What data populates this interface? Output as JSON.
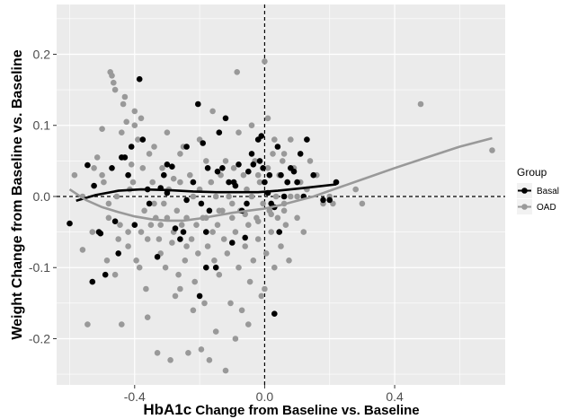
{
  "chart_data": {
    "type": "scatter",
    "xlabel_bold": "HbA1c",
    "xlabel_rest": " Change from Baseline vs. Baseline",
    "ylabel": "Weight Change from Baseline vs. Baseline",
    "xlim": [
      -0.64,
      0.74
    ],
    "ylim": [
      -0.265,
      0.27
    ],
    "x_ticks": [
      -0.4,
      0.0,
      0.4
    ],
    "x_tick_labels": [
      "-0.4",
      "0.0",
      "0.4"
    ],
    "y_ticks": [
      -0.2,
      -0.1,
      0.0,
      0.1,
      0.2
    ],
    "y_tick_labels": [
      "-0.2",
      "-0.1",
      "0.0",
      "0.1",
      "0.2"
    ],
    "reference_lines": {
      "x": 0.0,
      "y": 0.0,
      "style": "dashed"
    },
    "grid": true,
    "legend": {
      "title": "Group",
      "position": "right"
    },
    "series": [
      {
        "name": "Basal",
        "color": "#000000",
        "points": [
          [
            -0.6,
            -0.038
          ],
          [
            -0.545,
            0.044
          ],
          [
            -0.525,
            0.015
          ],
          [
            -0.51,
            -0.05
          ],
          [
            -0.505,
            -0.052
          ],
          [
            -0.49,
            -0.11
          ],
          [
            -0.47,
            0.04
          ],
          [
            -0.46,
            -0.035
          ],
          [
            -0.44,
            0.055
          ],
          [
            -0.43,
            0.055
          ],
          [
            -0.42,
            0.03
          ],
          [
            -0.41,
            0.07
          ],
          [
            -0.4,
            -0.04
          ],
          [
            -0.385,
            0.165
          ],
          [
            -0.375,
            0.08
          ],
          [
            -0.36,
            0.01
          ],
          [
            -0.355,
            -0.01
          ],
          [
            -0.33,
            -0.085
          ],
          [
            -0.32,
            0.012
          ],
          [
            -0.31,
            0.03
          ],
          [
            -0.3,
            0.005
          ],
          [
            -0.285,
            0.042
          ],
          [
            -0.275,
            -0.045
          ],
          [
            -0.26,
            -0.06
          ],
          [
            -0.24,
            -0.005
          ],
          [
            -0.22,
            0.02
          ],
          [
            -0.205,
            0.13
          ],
          [
            -0.195,
            -0.01
          ],
          [
            -0.19,
            0.075
          ],
          [
            -0.18,
            -0.05
          ],
          [
            -0.175,
            0.04
          ],
          [
            -0.17,
            -0.02
          ],
          [
            -0.15,
            -0.1
          ],
          [
            -0.145,
            0.035
          ],
          [
            -0.13,
            0.04
          ],
          [
            -0.12,
            0.11
          ],
          [
            -0.11,
            0.02
          ],
          [
            -0.1,
            -0.065
          ],
          [
            -0.095,
            0.02
          ],
          [
            -0.09,
            0.015
          ],
          [
            -0.08,
            0.045
          ],
          [
            -0.07,
            -0.02
          ],
          [
            -0.06,
            -0.058
          ],
          [
            -0.055,
            -0.01
          ],
          [
            -0.04,
            0.06
          ],
          [
            -0.035,
            0.045
          ],
          [
            -0.02,
            0.08
          ],
          [
            -0.015,
            0.05
          ],
          [
            -0.01,
            0.085
          ],
          [
            0.0,
            0.02
          ],
          [
            0.01,
            0.005
          ],
          [
            0.02,
            -0.01
          ],
          [
            0.03,
            -0.015
          ],
          [
            0.04,
            0.07
          ],
          [
            0.045,
            -0.05
          ],
          [
            0.05,
            0.03
          ],
          [
            0.06,
            0.0
          ],
          [
            0.07,
            0.02
          ],
          [
            0.08,
            0.04
          ],
          [
            0.09,
            0.035
          ],
          [
            0.1,
            0.02
          ],
          [
            0.11,
            0.06
          ],
          [
            0.12,
            0.0
          ],
          [
            0.13,
            0.08
          ],
          [
            0.15,
            0.03
          ],
          [
            0.18,
            -0.005
          ],
          [
            0.2,
            -0.005
          ],
          [
            0.22,
            0.02
          ],
          [
            -0.53,
            -0.12
          ],
          [
            -0.45,
            -0.08
          ],
          [
            -0.25,
            -0.05
          ],
          [
            -0.2,
            -0.14
          ],
          [
            -0.18,
            -0.1
          ],
          [
            0.03,
            -0.165
          ],
          [
            -0.3,
            0.045
          ],
          [
            -0.24,
            0.07
          ],
          [
            -0.05,
            0.035
          ],
          [
            -0.005,
            0.04
          ],
          [
            0.015,
            0.03
          ],
          [
            -0.14,
            0.09
          ]
        ]
      },
      {
        "name": "OAD",
        "color": "#999999",
        "points": [
          [
            -0.585,
            0.03
          ],
          [
            -0.56,
            -0.075
          ],
          [
            -0.545,
            -0.18
          ],
          [
            -0.53,
            -0.05
          ],
          [
            -0.525,
            0.04
          ],
          [
            -0.515,
            0.055
          ],
          [
            -0.5,
            0.095
          ],
          [
            -0.495,
            0.02
          ],
          [
            -0.485,
            -0.09
          ],
          [
            -0.48,
            -0.01
          ],
          [
            -0.475,
            0.175
          ],
          [
            -0.47,
            0.17
          ],
          [
            -0.465,
            0.16
          ],
          [
            -0.46,
            -0.11
          ],
          [
            -0.455,
            0.0
          ],
          [
            -0.45,
            -0.06
          ],
          [
            -0.445,
            -0.04
          ],
          [
            -0.44,
            -0.18
          ],
          [
            -0.435,
            0.13
          ],
          [
            -0.43,
            0.14
          ],
          [
            -0.425,
            0.105
          ],
          [
            -0.42,
            -0.07
          ],
          [
            -0.415,
            0.01
          ],
          [
            -0.41,
            0.045
          ],
          [
            -0.405,
            0.02
          ],
          [
            -0.4,
            0.1
          ],
          [
            -0.395,
            -0.09
          ],
          [
            -0.39,
            0.08
          ],
          [
            -0.385,
            -0.1
          ],
          [
            -0.38,
            -0.05
          ],
          [
            -0.375,
            0.04
          ],
          [
            -0.37,
            -0.02
          ],
          [
            -0.365,
            -0.13
          ],
          [
            -0.36,
            -0.17
          ],
          [
            -0.355,
            0.06
          ],
          [
            -0.35,
            -0.04
          ],
          [
            -0.345,
            0.02
          ],
          [
            -0.34,
            -0.01
          ],
          [
            -0.335,
            -0.03
          ],
          [
            -0.33,
            -0.22
          ],
          [
            -0.325,
            -0.06
          ],
          [
            -0.32,
            -0.08
          ],
          [
            -0.315,
            0.04
          ],
          [
            -0.31,
            -0.01
          ],
          [
            -0.305,
            -0.1
          ],
          [
            -0.3,
            -0.03
          ],
          [
            -0.295,
            0.01
          ],
          [
            -0.29,
            -0.23
          ],
          [
            -0.285,
            -0.065
          ],
          [
            -0.28,
            0.025
          ],
          [
            -0.275,
            -0.14
          ],
          [
            -0.27,
            -0.02
          ],
          [
            -0.265,
            -0.11
          ],
          [
            -0.26,
            0.02
          ],
          [
            -0.255,
            -0.04
          ],
          [
            -0.25,
            0.07
          ],
          [
            -0.245,
            -0.09
          ],
          [
            -0.24,
            -0.03
          ],
          [
            -0.235,
            -0.22
          ],
          [
            -0.23,
            0.03
          ],
          [
            -0.225,
            -0.06
          ],
          [
            -0.22,
            0.0
          ],
          [
            -0.215,
            -0.12
          ],
          [
            -0.21,
            -0.04
          ],
          [
            -0.205,
            -0.08
          ],
          [
            -0.2,
            0.01
          ],
          [
            -0.195,
            -0.215
          ],
          [
            -0.19,
            -0.03
          ],
          [
            -0.185,
            -0.15
          ],
          [
            -0.18,
            0.05
          ],
          [
            -0.175,
            -0.07
          ],
          [
            -0.17,
            -0.23
          ],
          [
            -0.165,
            0.02
          ],
          [
            -0.16,
            -0.05
          ],
          [
            -0.155,
            -0.09
          ],
          [
            -0.15,
            0.0
          ],
          [
            -0.145,
            -0.04
          ],
          [
            -0.14,
            -0.11
          ],
          [
            -0.135,
            0.03
          ],
          [
            -0.13,
            -0.02
          ],
          [
            -0.125,
            -0.06
          ],
          [
            -0.12,
            -0.245
          ],
          [
            -0.115,
            -0.08
          ],
          [
            -0.11,
            0.0
          ],
          [
            -0.105,
            -0.15
          ],
          [
            -0.1,
            -0.03
          ],
          [
            -0.095,
            0.04
          ],
          [
            -0.09,
            -0.05
          ],
          [
            -0.085,
            0.175
          ],
          [
            -0.08,
            -0.1
          ],
          [
            -0.075,
            -0.02
          ],
          [
            -0.07,
            -0.16
          ],
          [
            -0.065,
            0.03
          ],
          [
            -0.06,
            -0.07
          ],
          [
            -0.055,
            0.01
          ],
          [
            -0.05,
            -0.04
          ],
          [
            -0.045,
            -0.12
          ],
          [
            -0.04,
            0.0
          ],
          [
            -0.035,
            -0.09
          ],
          [
            -0.03,
            0.05
          ],
          [
            -0.025,
            -0.03
          ],
          [
            -0.02,
            -0.06
          ],
          [
            -0.015,
            0.02
          ],
          [
            -0.01,
            -0.14
          ],
          [
            -0.005,
            -0.01
          ],
          [
            0.0,
            0.19
          ],
          [
            0.005,
            -0.08
          ],
          [
            0.01,
            0.04
          ],
          [
            0.015,
            -0.02
          ],
          [
            0.02,
            -0.05
          ],
          [
            0.025,
            0.06
          ],
          [
            0.03,
            -0.1
          ],
          [
            0.035,
            0.0
          ],
          [
            0.04,
            -0.03
          ],
          [
            0.045,
            0.03
          ],
          [
            0.05,
            -0.07
          ],
          [
            0.055,
            0.05
          ],
          [
            0.06,
            -0.01
          ],
          [
            0.065,
            -0.04
          ],
          [
            0.07,
            0.02
          ],
          [
            0.075,
            -0.09
          ],
          [
            0.08,
            0.0
          ],
          [
            0.09,
            0.04
          ],
          [
            0.1,
            -0.03
          ],
          [
            0.11,
            0.02
          ],
          [
            0.12,
            -0.05
          ],
          [
            0.13,
            0.01
          ],
          [
            0.14,
            0.05
          ],
          [
            0.16,
            0.03
          ],
          [
            0.18,
            -0.01
          ],
          [
            0.2,
            0.0
          ],
          [
            0.21,
            -0.01
          ],
          [
            0.28,
            0.01
          ],
          [
            0.3,
            -0.01
          ],
          [
            0.48,
            0.13
          ],
          [
            0.7,
            0.065
          ],
          [
            -0.5,
            0.03
          ],
          [
            -0.44,
            0.09
          ],
          [
            -0.38,
            0.11
          ],
          [
            -0.34,
            0.07
          ],
          [
            -0.3,
            0.09
          ],
          [
            -0.26,
            0.06
          ],
          [
            -0.2,
            0.08
          ],
          [
            -0.16,
            0.12
          ],
          [
            -0.12,
            0.05
          ],
          [
            -0.08,
            0.09
          ],
          [
            -0.04,
            0.1
          ],
          [
            -0.02,
            0.03
          ],
          [
            0.01,
            0.11
          ],
          [
            0.03,
            0.08
          ],
          [
            0.06,
            0.06
          ],
          [
            0.08,
            0.08
          ],
          [
            -0.56,
            0.0
          ],
          [
            -0.48,
            -0.03
          ],
          [
            -0.42,
            -0.05
          ],
          [
            -0.36,
            -0.06
          ],
          [
            -0.32,
            -0.04
          ],
          [
            -0.28,
            -0.05
          ],
          [
            -0.24,
            -0.07
          ],
          [
            -0.18,
            -0.03
          ],
          [
            -0.14,
            -0.02
          ],
          [
            -0.1,
            -0.01
          ],
          [
            -0.06,
            -0.025
          ],
          [
            -0.02,
            -0.035
          ],
          [
            0.02,
            -0.025
          ],
          [
            0.06,
            -0.02
          ],
          [
            0.1,
            0.0
          ],
          [
            -0.09,
            -0.2
          ],
          [
            -0.15,
            -0.19
          ],
          [
            -0.22,
            -0.16
          ],
          [
            -0.26,
            -0.13
          ],
          [
            -0.05,
            -0.18
          ],
          [
            0.0,
            -0.13
          ],
          [
            -0.46,
            0.15
          ],
          [
            -0.4,
            0.12
          ]
        ]
      }
    ],
    "trend_lines": [
      {
        "series": "Basal",
        "color": "#000000",
        "points": [
          [
            -0.58,
            -0.006
          ],
          [
            -0.52,
            0.002
          ],
          [
            -0.45,
            0.008
          ],
          [
            -0.38,
            0.01
          ],
          [
            -0.3,
            0.009
          ],
          [
            -0.22,
            0.007
          ],
          [
            -0.15,
            0.006
          ],
          [
            -0.08,
            0.006
          ],
          [
            -0.02,
            0.006
          ],
          [
            0.04,
            0.008
          ],
          [
            0.1,
            0.011
          ],
          [
            0.16,
            0.014
          ],
          [
            0.22,
            0.017
          ]
        ]
      },
      {
        "series": "OAD",
        "color": "#999999",
        "points": [
          [
            -0.6,
            0.01
          ],
          [
            -0.55,
            -0.005
          ],
          [
            -0.5,
            -0.015
          ],
          [
            -0.45,
            -0.022
          ],
          [
            -0.4,
            -0.028
          ],
          [
            -0.35,
            -0.032
          ],
          [
            -0.3,
            -0.034
          ],
          [
            -0.25,
            -0.034
          ],
          [
            -0.2,
            -0.031
          ],
          [
            -0.15,
            -0.027
          ],
          [
            -0.1,
            -0.023
          ],
          [
            -0.05,
            -0.02
          ],
          [
            0.0,
            -0.017
          ],
          [
            0.05,
            -0.012
          ],
          [
            0.1,
            -0.006
          ],
          [
            0.15,
            0.0
          ],
          [
            0.2,
            0.008
          ],
          [
            0.25,
            0.016
          ],
          [
            0.3,
            0.024
          ],
          [
            0.4,
            0.04
          ],
          [
            0.5,
            0.055
          ],
          [
            0.6,
            0.07
          ],
          [
            0.7,
            0.082
          ]
        ]
      }
    ]
  }
}
